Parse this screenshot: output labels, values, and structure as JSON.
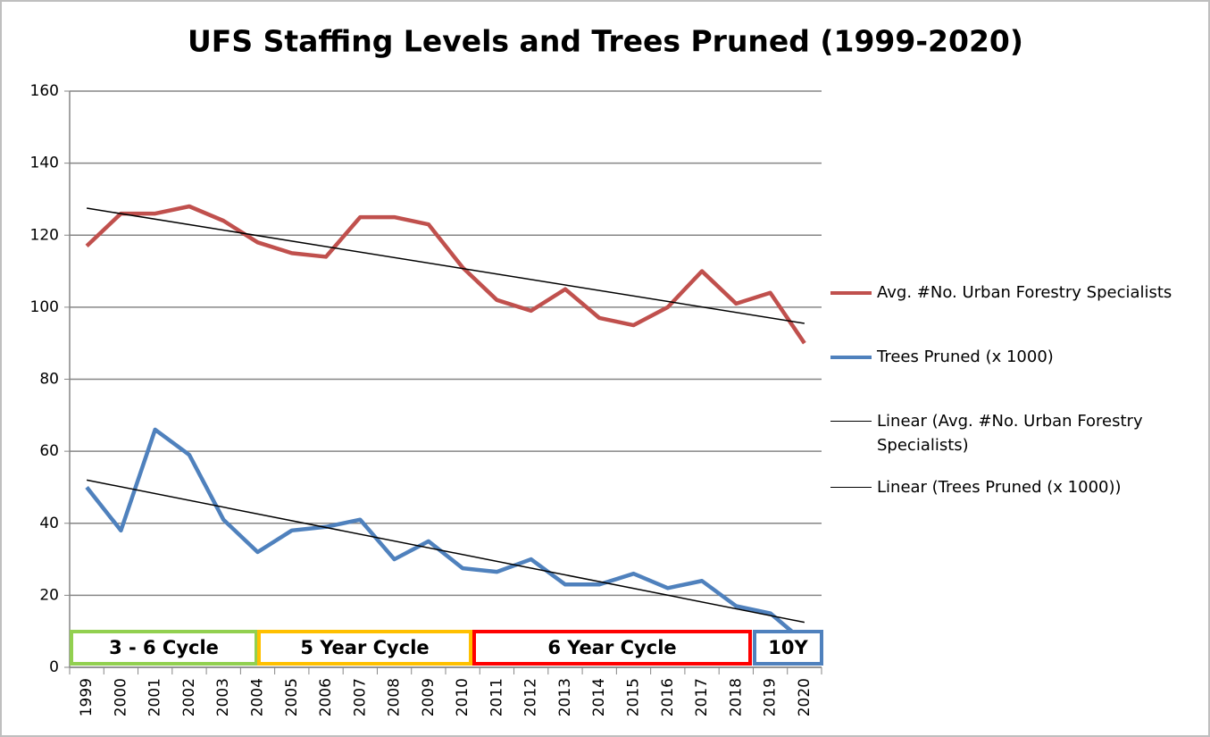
{
  "chart_data": {
    "type": "line",
    "title": "UFS Staffing Levels and Trees Pruned (1999-2020)",
    "categories": [
      "1999",
      "2000",
      "2001",
      "2002",
      "2003",
      "2004",
      "2005",
      "2006",
      "2007",
      "2008",
      "2009",
      "2010",
      "2011",
      "2012",
      "2013",
      "2014",
      "2015",
      "2016",
      "2017",
      "2018",
      "2019",
      "2020"
    ],
    "series": [
      {
        "name": "Avg. #No. Urban Forestry Specialists",
        "color": "#c0504d",
        "values": [
          117,
          126,
          126,
          128,
          124,
          118,
          115,
          114,
          125,
          125,
          123,
          111,
          102,
          99,
          105,
          97,
          95,
          100,
          110,
          101,
          104,
          90
        ]
      },
      {
        "name": "Trees Pruned (x 1000)",
        "color": "#4f81bd",
        "values": [
          50,
          38,
          66,
          59,
          41,
          32,
          38,
          39,
          41,
          30,
          35,
          27.5,
          26.5,
          30,
          23,
          23,
          26,
          22,
          24,
          17,
          15,
          7
        ]
      }
    ],
    "trendlines": [
      {
        "name": "Linear (Avg. #No. Urban Forestry Specialists)",
        "color": "#000000",
        "values": [
          127.5,
          95.5
        ]
      },
      {
        "name": "Linear (Trees Pruned (x 1000))",
        "color": "#000000",
        "values": [
          52,
          12.5
        ]
      }
    ],
    "annotations": [
      {
        "text": "3 - 6 Cycle",
        "color": "#92d050"
      },
      {
        "text": "5 Year Cycle",
        "color": "#ffc000"
      },
      {
        "text": "6 Year Cycle",
        "color": "#ff0000"
      },
      {
        "text": "10Y",
        "color": "#4f81bd"
      }
    ],
    "ylim": [
      0,
      160
    ],
    "yticks": [
      0,
      20,
      40,
      60,
      80,
      100,
      120,
      140,
      160
    ],
    "grid": true,
    "legend": "right"
  }
}
